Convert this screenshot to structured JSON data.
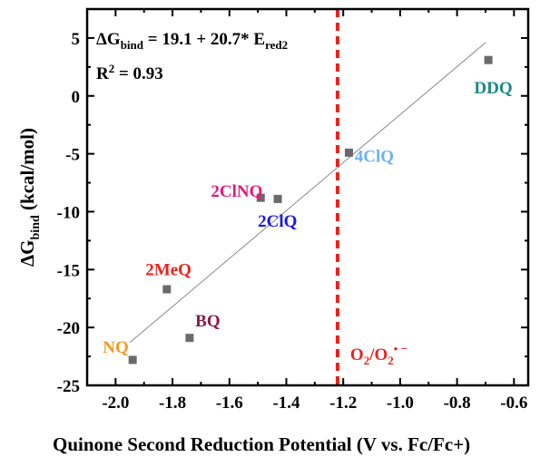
{
  "chart_data": {
    "type": "scatter",
    "xlabel": "Quinone Second Reduction Potential (V vs. Fc/Fc+)",
    "ylabel_main": "ΔG",
    "ylabel_sub": "bind",
    "ylabel_tail": " (kcal/mol)",
    "xlim": [
      -2.1,
      -0.55
    ],
    "ylim": [
      -25,
      7.5
    ],
    "x_ticks": [
      -2.0,
      -1.8,
      -1.6,
      -1.4,
      -1.2,
      -1.0,
      -0.8,
      -0.6
    ],
    "x_tick_labels": [
      "-2.0",
      "-1.8",
      "-1.6",
      "-1.4",
      "-1.2",
      "-1.0",
      "-0.8",
      "-0.6"
    ],
    "y_ticks": [
      5,
      0,
      -5,
      -10,
      -15,
      -20,
      -25
    ],
    "y_tick_labels": [
      "5",
      "0",
      "-5",
      "-10",
      "-15",
      "-20",
      "-25"
    ],
    "points": [
      {
        "x": -1.94,
        "y": -22.8
      },
      {
        "x": -1.74,
        "y": -20.9
      },
      {
        "x": -1.82,
        "y": -16.7
      },
      {
        "x": -1.49,
        "y": -8.8
      },
      {
        "x": -1.43,
        "y": -8.9
      },
      {
        "x": -1.18,
        "y": -4.9
      },
      {
        "x": -0.69,
        "y": 3.1
      }
    ],
    "labels": [
      {
        "text": "NQ",
        "x": -2.045,
        "y": -22.2,
        "color": "#f39a1f"
      },
      {
        "text": "BQ",
        "x": -1.72,
        "y": -19.9,
        "color": "#8b1a4a"
      },
      {
        "text": "2MeQ",
        "x": -1.895,
        "y": -15.5,
        "color": "#e8231c"
      },
      {
        "text": "2ClNQ",
        "x": -1.665,
        "y": -8.7,
        "color": "#e2197f"
      },
      {
        "text": "2ClQ",
        "x": -1.5,
        "y": -11.3,
        "color": "#1a1ae0"
      },
      {
        "text": "4ClQ",
        "x": -1.16,
        "y": -5.7,
        "color": "#6fb2f2"
      },
      {
        "text": "DDQ",
        "x": -0.74,
        "y": 0.2,
        "color": "#1b8a84"
      }
    ],
    "fit_line": {
      "x": [
        -1.95,
        -0.7
      ],
      "y": [
        -21.3,
        4.6
      ],
      "color": "#888888"
    },
    "vline": {
      "x": -1.22,
      "color": "#e8231c",
      "label_main": "O",
      "label_sub": "2",
      "label_mid": "/O",
      "label_sub2": "2",
      "label_sup": "• −"
    },
    "equation": {
      "main": "ΔG",
      "sub": "bind",
      "mid": " = 19.1 + 20.7* E",
      "sub2": "red2"
    },
    "r2": {
      "main": "R",
      "sup": "2",
      "tail": " =  0.93"
    },
    "marker_color": "#6a6a6a",
    "grid": false
  }
}
